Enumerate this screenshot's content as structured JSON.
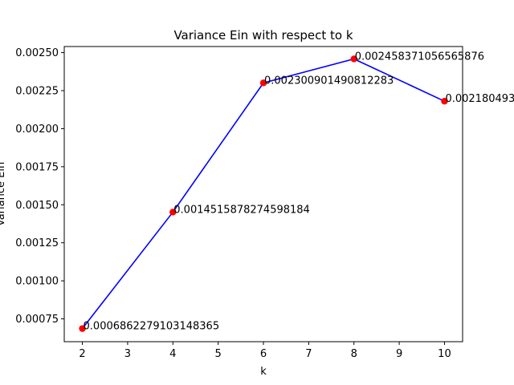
{
  "chart_data": {
    "type": "line",
    "title": "Variance Ein with respect to k",
    "xlabel": "k",
    "ylabel": "Variance Ein",
    "x": [
      2,
      4,
      6,
      8,
      10
    ],
    "series": [
      {
        "values": [
          0.0006862279103148365,
          0.0014515878274598184,
          0.002300901490812283,
          0.002458371056565876,
          0.002180493
        ],
        "labels": [
          "0.0006862279103148365",
          "0.0014515878274598184",
          "0.002300901490812283",
          "0.002458371056565876",
          "0.002180493"
        ],
        "line_color": "#0000ff",
        "marker_color": "#ff0000"
      }
    ],
    "xlim": [
      1.6,
      10.4
    ],
    "ylim": [
      0.0006,
      0.00254
    ],
    "xticks": [
      2,
      3,
      4,
      5,
      6,
      7,
      8,
      9,
      10
    ],
    "yticks": [
      "0.00075",
      "0.00100",
      "0.00125",
      "0.00150",
      "0.00175",
      "0.00200",
      "0.00225",
      "0.00250"
    ],
    "grid": false,
    "legend": "none"
  }
}
